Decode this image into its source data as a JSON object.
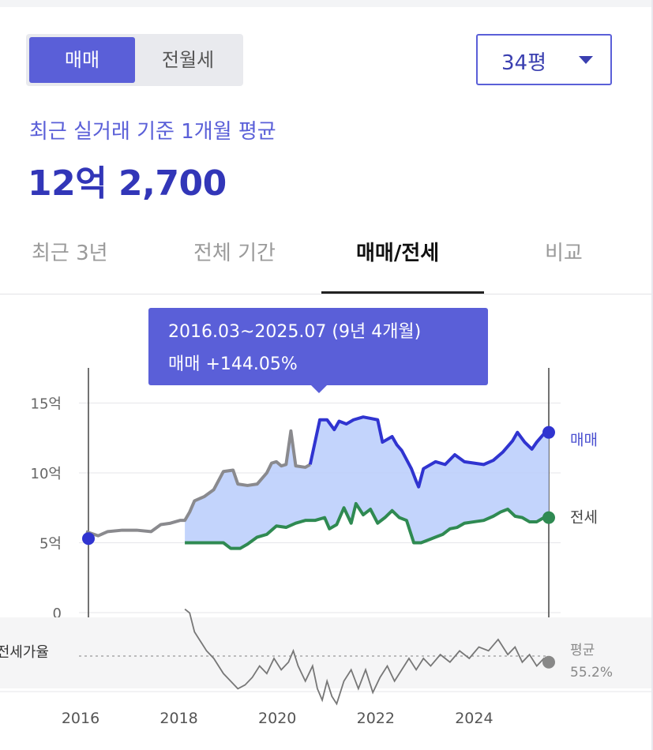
{
  "toggle": {
    "sale_label": "매매",
    "lease_label": "전월세"
  },
  "area_select": {
    "value": "34평"
  },
  "summary": {
    "subtitle": "최근 실거래 기준 1개월 평균",
    "price": "12억 2,700"
  },
  "tabs": [
    {
      "label": "최근 3년",
      "selected": false
    },
    {
      "label": "전체 기간",
      "selected": false
    },
    {
      "label": "매매/전세",
      "selected": true
    },
    {
      "label": "비교",
      "selected": false
    }
  ],
  "tooltip": {
    "period": "2016.03~2025.07 (9년 4개월)",
    "change": "매매 +144.05%"
  },
  "colors": {
    "accent": "#5a5fd8",
    "sale_line": "#3034d0",
    "jeonse_line": "#2f8a52",
    "area_fill": "#b9cdfc",
    "ratio_line": "#777777"
  },
  "chart_data": {
    "type": "line",
    "x_unit": "year",
    "y_unit": "억",
    "x_ticks": [
      "2016",
      "2018",
      "2020",
      "2022",
      "2024"
    ],
    "y_ticks": [
      "15억",
      "10억",
      "5억",
      "0"
    ],
    "ylim": [
      0,
      16.5
    ],
    "xlim": [
      2015.8,
      2025.7
    ],
    "series": [
      {
        "name": "매매",
        "points": [
          [
            2015.95,
            5.8
          ],
          [
            2016.2,
            5.5
          ],
          [
            2016.4,
            5.8
          ],
          [
            2016.7,
            5.9
          ],
          [
            2017.0,
            5.9
          ],
          [
            2017.3,
            5.8
          ],
          [
            2017.5,
            6.3
          ],
          [
            2017.7,
            6.4
          ],
          [
            2017.9,
            6.6
          ],
          [
            2018.0,
            6.6
          ],
          [
            2018.1,
            7.2
          ],
          [
            2018.2,
            8.0
          ],
          [
            2018.4,
            8.3
          ],
          [
            2018.6,
            8.8
          ],
          [
            2018.8,
            10.1
          ],
          [
            2019.0,
            10.2
          ],
          [
            2019.1,
            9.2
          ],
          [
            2019.3,
            9.1
          ],
          [
            2019.5,
            9.2
          ],
          [
            2019.7,
            10.0
          ],
          [
            2019.8,
            10.7
          ],
          [
            2019.9,
            10.8
          ],
          [
            2020.0,
            10.5
          ],
          [
            2020.1,
            10.6
          ],
          [
            2020.2,
            13.0
          ],
          [
            2020.3,
            10.5
          ],
          [
            2020.5,
            10.4
          ],
          [
            2020.6,
            10.6
          ],
          [
            2020.8,
            13.8
          ],
          [
            2020.95,
            13.8
          ],
          [
            2021.1,
            13.1
          ],
          [
            2021.2,
            13.7
          ],
          [
            2021.35,
            13.5
          ],
          [
            2021.5,
            13.8
          ],
          [
            2021.7,
            14.0
          ],
          [
            2021.85,
            13.9
          ],
          [
            2022.0,
            13.8
          ],
          [
            2022.1,
            12.2
          ],
          [
            2022.3,
            12.6
          ],
          [
            2022.4,
            12.0
          ],
          [
            2022.5,
            11.6
          ],
          [
            2022.7,
            10.3
          ],
          [
            2022.8,
            9.4
          ],
          [
            2022.85,
            9.0
          ],
          [
            2022.95,
            10.3
          ],
          [
            2023.2,
            10.8
          ],
          [
            2023.4,
            10.6
          ],
          [
            2023.6,
            11.3
          ],
          [
            2023.8,
            10.8
          ],
          [
            2024.0,
            10.7
          ],
          [
            2024.2,
            10.6
          ],
          [
            2024.4,
            10.9
          ],
          [
            2024.6,
            11.5
          ],
          [
            2024.8,
            12.3
          ],
          [
            2024.9,
            12.9
          ],
          [
            2025.05,
            12.2
          ],
          [
            2025.2,
            11.7
          ],
          [
            2025.3,
            12.2
          ],
          [
            2025.45,
            12.8
          ],
          [
            2025.55,
            12.9
          ]
        ]
      },
      {
        "name": "전세",
        "points": [
          [
            2018.0,
            5.0
          ],
          [
            2018.3,
            5.0
          ],
          [
            2018.6,
            5.0
          ],
          [
            2018.8,
            5.0
          ],
          [
            2018.95,
            4.6
          ],
          [
            2019.15,
            4.6
          ],
          [
            2019.3,
            4.9
          ],
          [
            2019.5,
            5.4
          ],
          [
            2019.7,
            5.6
          ],
          [
            2019.9,
            6.2
          ],
          [
            2020.1,
            6.1
          ],
          [
            2020.3,
            6.4
          ],
          [
            2020.5,
            6.6
          ],
          [
            2020.7,
            6.6
          ],
          [
            2020.9,
            6.8
          ],
          [
            2021.0,
            6.0
          ],
          [
            2021.15,
            6.3
          ],
          [
            2021.3,
            7.5
          ],
          [
            2021.45,
            6.4
          ],
          [
            2021.55,
            7.8
          ],
          [
            2021.7,
            7.0
          ],
          [
            2021.85,
            7.4
          ],
          [
            2022.0,
            6.4
          ],
          [
            2022.15,
            6.8
          ],
          [
            2022.3,
            7.3
          ],
          [
            2022.45,
            6.8
          ],
          [
            2022.6,
            6.6
          ],
          [
            2022.75,
            5.0
          ],
          [
            2022.9,
            5.0
          ],
          [
            2023.05,
            5.2
          ],
          [
            2023.2,
            5.4
          ],
          [
            2023.35,
            5.6
          ],
          [
            2023.5,
            6.0
          ],
          [
            2023.65,
            6.1
          ],
          [
            2023.8,
            6.4
          ],
          [
            2024.0,
            6.5
          ],
          [
            2024.2,
            6.6
          ],
          [
            2024.4,
            6.9
          ],
          [
            2024.55,
            7.2
          ],
          [
            2024.7,
            7.4
          ],
          [
            2024.85,
            6.9
          ],
          [
            2025.0,
            6.8
          ],
          [
            2025.15,
            6.5
          ],
          [
            2025.3,
            6.5
          ],
          [
            2025.45,
            6.8
          ],
          [
            2025.55,
            6.8
          ]
        ]
      },
      {
        "name": "전세가율",
        "points": [
          [
            2018.0,
            68
          ],
          [
            2018.1,
            67
          ],
          [
            2018.2,
            62
          ],
          [
            2018.3,
            60
          ],
          [
            2018.45,
            57
          ],
          [
            2018.6,
            55
          ],
          [
            2018.8,
            51
          ],
          [
            2018.95,
            49
          ],
          [
            2019.1,
            47
          ],
          [
            2019.25,
            48
          ],
          [
            2019.4,
            50
          ],
          [
            2019.55,
            53
          ],
          [
            2019.7,
            51
          ],
          [
            2019.85,
            55
          ],
          [
            2020.0,
            52
          ],
          [
            2020.15,
            54
          ],
          [
            2020.25,
            57
          ],
          [
            2020.35,
            53
          ],
          [
            2020.5,
            49
          ],
          [
            2020.65,
            53
          ],
          [
            2020.75,
            47
          ],
          [
            2020.85,
            44
          ],
          [
            2020.95,
            49
          ],
          [
            2021.05,
            45
          ],
          [
            2021.15,
            43
          ],
          [
            2021.3,
            49
          ],
          [
            2021.45,
            52
          ],
          [
            2021.6,
            47
          ],
          [
            2021.75,
            52
          ],
          [
            2021.9,
            46
          ],
          [
            2022.05,
            50
          ],
          [
            2022.2,
            53
          ],
          [
            2022.35,
            49
          ],
          [
            2022.5,
            52
          ],
          [
            2022.65,
            55
          ],
          [
            2022.8,
            52
          ],
          [
            2022.95,
            55
          ],
          [
            2023.1,
            53
          ],
          [
            2023.3,
            56
          ],
          [
            2023.5,
            54
          ],
          [
            2023.7,
            57
          ],
          [
            2023.9,
            55
          ],
          [
            2024.1,
            58
          ],
          [
            2024.3,
            57
          ],
          [
            2024.5,
            60
          ],
          [
            2024.7,
            56
          ],
          [
            2024.85,
            58
          ],
          [
            2025.0,
            54
          ],
          [
            2025.15,
            56
          ],
          [
            2025.3,
            53
          ],
          [
            2025.45,
            55
          ],
          [
            2025.55,
            54
          ]
        ]
      }
    ],
    "ratio_average": {
      "label": "평균",
      "value": "55.2%"
    },
    "ratio_label": "전세가율",
    "start_marker": {
      "x": 2016.0,
      "y": 5.3
    },
    "end_labels": {
      "sale": "매매",
      "jeonse": "전세"
    },
    "grid": true
  }
}
